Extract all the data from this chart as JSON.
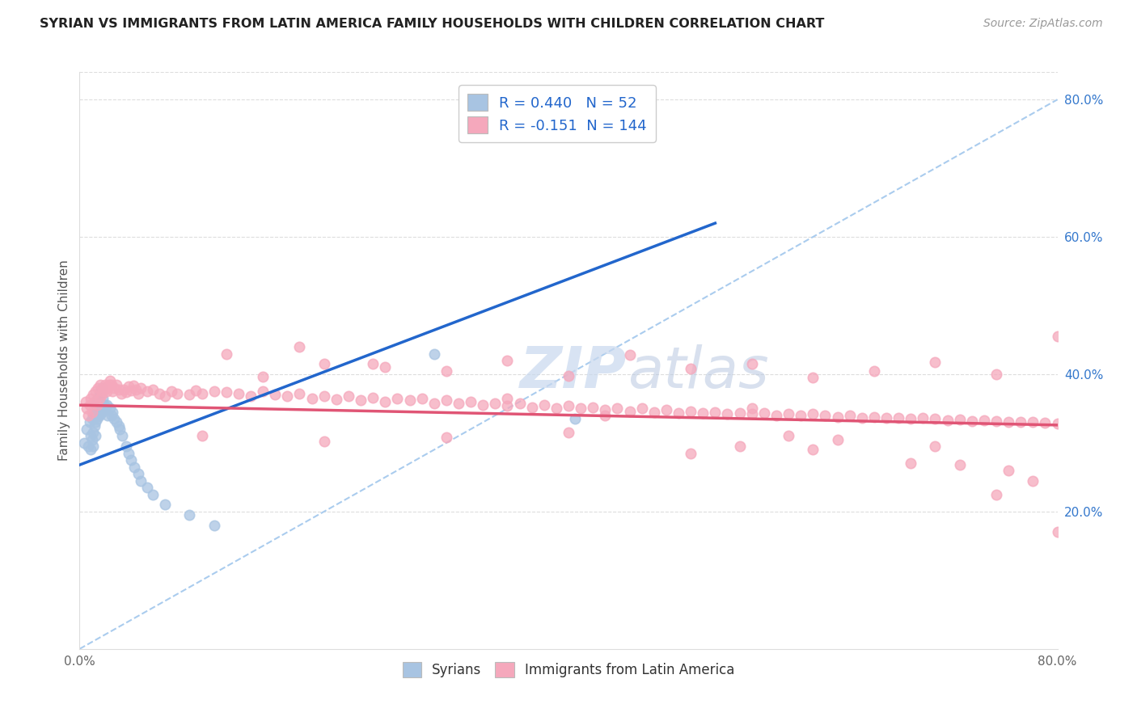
{
  "title": "SYRIAN VS IMMIGRANTS FROM LATIN AMERICA FAMILY HOUSEHOLDS WITH CHILDREN CORRELATION CHART",
  "source": "Source: ZipAtlas.com",
  "ylabel": "Family Households with Children",
  "xlim": [
    0.0,
    0.8
  ],
  "ylim": [
    0.0,
    0.84
  ],
  "xtick_positions": [
    0.0,
    0.1,
    0.2,
    0.3,
    0.4,
    0.5,
    0.6,
    0.7,
    0.8
  ],
  "xtick_labels": [
    "0.0%",
    "",
    "",
    "",
    "",
    "",
    "",
    "",
    "80.0%"
  ],
  "ytick_positions": [
    0.2,
    0.4,
    0.6,
    0.8
  ],
  "ytick_labels": [
    "20.0%",
    "40.0%",
    "60.0%",
    "80.0%"
  ],
  "syrians_R": 0.44,
  "syrians_N": 52,
  "latam_R": -0.151,
  "latam_N": 144,
  "syrians_color": "#a8c4e2",
  "latam_color": "#f5a8bc",
  "syrians_line_color": "#2266cc",
  "latam_line_color": "#e05575",
  "diag_line_color": "#aaccee",
  "grid_color": "#dddddd",
  "watermark_color": "#c8d8ee",
  "syrians_line_x0": 0.0,
  "syrians_line_y0": 0.268,
  "syrians_line_x1": 0.52,
  "syrians_line_y1": 0.62,
  "latam_line_x0": 0.0,
  "latam_line_y0": 0.355,
  "latam_line_x1": 0.8,
  "latam_line_y1": 0.326,
  "syrians_x": [
    0.004,
    0.006,
    0.007,
    0.008,
    0.009,
    0.009,
    0.01,
    0.01,
    0.011,
    0.011,
    0.011,
    0.012,
    0.012,
    0.013,
    0.013,
    0.013,
    0.014,
    0.014,
    0.015,
    0.015,
    0.016,
    0.016,
    0.017,
    0.017,
    0.018,
    0.018,
    0.019,
    0.02,
    0.021,
    0.022,
    0.023,
    0.025,
    0.026,
    0.027,
    0.028,
    0.03,
    0.032,
    0.033,
    0.035,
    0.038,
    0.04,
    0.042,
    0.045,
    0.048,
    0.05,
    0.055,
    0.06,
    0.07,
    0.09,
    0.11,
    0.29,
    0.405
  ],
  "syrians_y": [
    0.3,
    0.32,
    0.295,
    0.33,
    0.31,
    0.29,
    0.335,
    0.305,
    0.34,
    0.315,
    0.295,
    0.345,
    0.325,
    0.355,
    0.33,
    0.31,
    0.36,
    0.335,
    0.365,
    0.34,
    0.37,
    0.34,
    0.375,
    0.345,
    0.38,
    0.345,
    0.365,
    0.355,
    0.35,
    0.355,
    0.34,
    0.35,
    0.34,
    0.345,
    0.335,
    0.33,
    0.325,
    0.32,
    0.31,
    0.295,
    0.285,
    0.275,
    0.265,
    0.255,
    0.245,
    0.235,
    0.225,
    0.21,
    0.195,
    0.18,
    0.43,
    0.335
  ],
  "latam_x": [
    0.005,
    0.006,
    0.007,
    0.008,
    0.009,
    0.01,
    0.011,
    0.012,
    0.013,
    0.014,
    0.015,
    0.016,
    0.017,
    0.018,
    0.019,
    0.02,
    0.021,
    0.022,
    0.023,
    0.024,
    0.025,
    0.026,
    0.027,
    0.028,
    0.03,
    0.032,
    0.034,
    0.036,
    0.038,
    0.04,
    0.042,
    0.044,
    0.046,
    0.048,
    0.05,
    0.055,
    0.06,
    0.065,
    0.07,
    0.075,
    0.08,
    0.09,
    0.095,
    0.1,
    0.11,
    0.12,
    0.13,
    0.14,
    0.15,
    0.16,
    0.17,
    0.18,
    0.19,
    0.2,
    0.21,
    0.22,
    0.23,
    0.24,
    0.25,
    0.26,
    0.27,
    0.28,
    0.29,
    0.3,
    0.31,
    0.32,
    0.33,
    0.34,
    0.35,
    0.36,
    0.37,
    0.38,
    0.39,
    0.4,
    0.41,
    0.42,
    0.43,
    0.44,
    0.45,
    0.46,
    0.47,
    0.48,
    0.49,
    0.5,
    0.51,
    0.52,
    0.53,
    0.54,
    0.55,
    0.56,
    0.57,
    0.58,
    0.59,
    0.6,
    0.61,
    0.62,
    0.63,
    0.64,
    0.65,
    0.66,
    0.67,
    0.68,
    0.69,
    0.7,
    0.71,
    0.72,
    0.73,
    0.74,
    0.75,
    0.76,
    0.77,
    0.78,
    0.79,
    0.8,
    0.15,
    0.2,
    0.25,
    0.3,
    0.35,
    0.4,
    0.45,
    0.5,
    0.55,
    0.6,
    0.65,
    0.7,
    0.75,
    0.8,
    0.1,
    0.2,
    0.3,
    0.4,
    0.5,
    0.6,
    0.7,
    0.8,
    0.35,
    0.55,
    0.75,
    0.43,
    0.12,
    0.18,
    0.24,
    0.62,
    0.68,
    0.72,
    0.76,
    0.78,
    0.54,
    0.58
  ],
  "latam_y": [
    0.36,
    0.35,
    0.34,
    0.355,
    0.365,
    0.345,
    0.37,
    0.36,
    0.375,
    0.355,
    0.38,
    0.365,
    0.385,
    0.37,
    0.375,
    0.38,
    0.385,
    0.375,
    0.38,
    0.385,
    0.39,
    0.385,
    0.375,
    0.38,
    0.385,
    0.378,
    0.372,
    0.378,
    0.374,
    0.382,
    0.376,
    0.384,
    0.378,
    0.372,
    0.38,
    0.375,
    0.378,
    0.372,
    0.368,
    0.375,
    0.372,
    0.37,
    0.376,
    0.372,
    0.375,
    0.374,
    0.372,
    0.368,
    0.375,
    0.37,
    0.368,
    0.372,
    0.365,
    0.368,
    0.364,
    0.368,
    0.362,
    0.366,
    0.36,
    0.365,
    0.362,
    0.365,
    0.358,
    0.362,
    0.358,
    0.36,
    0.355,
    0.358,
    0.354,
    0.358,
    0.352,
    0.355,
    0.35,
    0.354,
    0.35,
    0.352,
    0.348,
    0.35,
    0.346,
    0.35,
    0.345,
    0.348,
    0.344,
    0.346,
    0.343,
    0.345,
    0.342,
    0.344,
    0.342,
    0.344,
    0.34,
    0.342,
    0.34,
    0.342,
    0.34,
    0.338,
    0.34,
    0.337,
    0.338,
    0.336,
    0.337,
    0.335,
    0.336,
    0.335,
    0.333,
    0.334,
    0.332,
    0.333,
    0.332,
    0.331,
    0.33,
    0.33,
    0.329,
    0.328,
    0.396,
    0.415,
    0.41,
    0.405,
    0.42,
    0.398,
    0.428,
    0.408,
    0.415,
    0.395,
    0.405,
    0.418,
    0.4,
    0.455,
    0.31,
    0.302,
    0.308,
    0.315,
    0.285,
    0.29,
    0.295,
    0.17,
    0.365,
    0.35,
    0.225,
    0.34,
    0.43,
    0.44,
    0.415,
    0.305,
    0.27,
    0.268,
    0.26,
    0.245,
    0.295,
    0.31
  ]
}
